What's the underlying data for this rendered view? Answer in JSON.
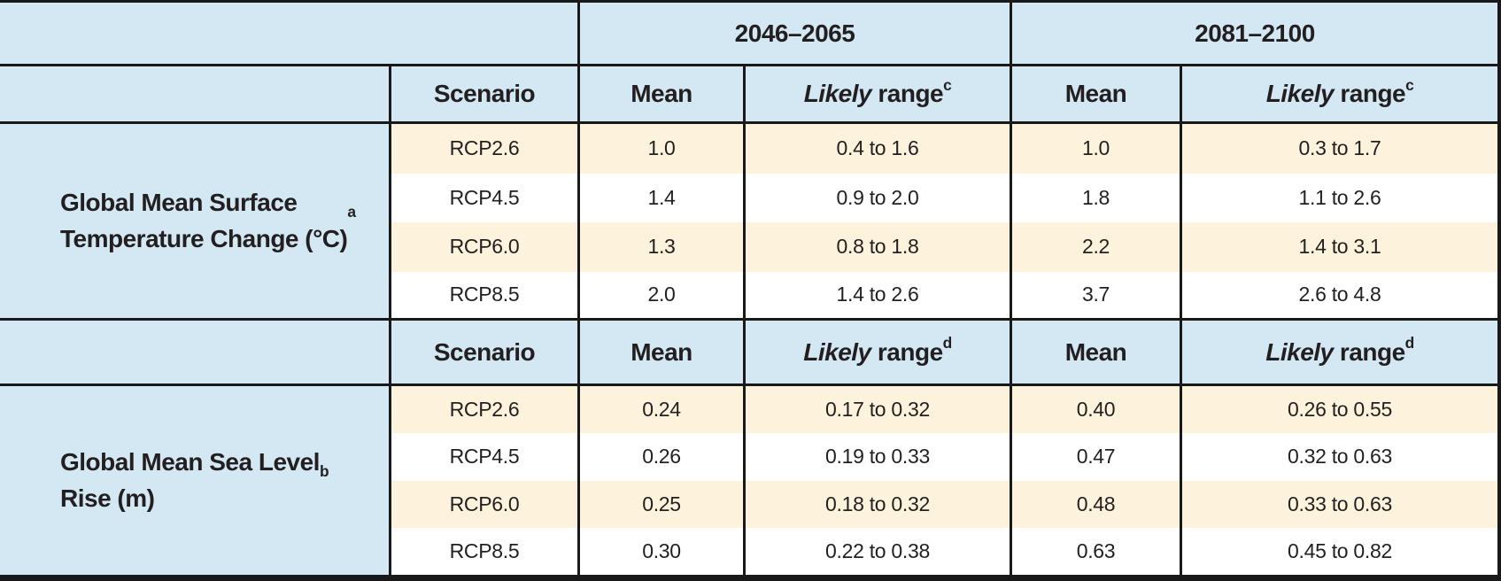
{
  "table": {
    "period_headers": [
      "2046–2065",
      "2081–2100"
    ],
    "column_headers": {
      "scenario": "Scenario",
      "mean": "Mean",
      "likely_word": "Likely",
      "range_word": "range"
    },
    "sections": [
      {
        "label": "Global Mean Surface\nTemperature Change (°C)",
        "label_sup": "a",
        "likely_sup": "c",
        "rows": [
          {
            "scenario": "RCP2.6",
            "mean1": "1.0",
            "range1": "0.4 to 1.6",
            "mean2": "1.0",
            "range2": "0.3 to 1.7"
          },
          {
            "scenario": "RCP4.5",
            "mean1": "1.4",
            "range1": "0.9 to 2.0",
            "mean2": "1.8",
            "range2": "1.1 to 2.6"
          },
          {
            "scenario": "RCP6.0",
            "mean1": "1.3",
            "range1": "0.8 to 1.8",
            "mean2": "2.2",
            "range2": "1.4 to 3.1"
          },
          {
            "scenario": "RCP8.5",
            "mean1": "2.0",
            "range1": "1.4 to 2.6",
            "mean2": "3.7",
            "range2": "2.6 to 4.8"
          }
        ]
      },
      {
        "label": "Global Mean Sea Level\nRise (m)",
        "label_sup": "b",
        "likely_sup": "d",
        "rows": [
          {
            "scenario": "RCP2.6",
            "mean1": "0.24",
            "range1": "0.17 to 0.32",
            "mean2": "0.40",
            "range2": "0.26 to 0.55"
          },
          {
            "scenario": "RCP4.5",
            "mean1": "0.26",
            "range1": "0.19 to 0.33",
            "mean2": "0.47",
            "range2": "0.32 to 0.63"
          },
          {
            "scenario": "RCP6.0",
            "mean1": "0.25",
            "range1": "0.18 to 0.32",
            "mean2": "0.48",
            "range2": "0.33 to 0.63"
          },
          {
            "scenario": "RCP8.5",
            "mean1": "0.30",
            "range1": "0.22 to 0.38",
            "mean2": "0.63",
            "range2": "0.45 to 0.82"
          }
        ]
      }
    ]
  },
  "colors": {
    "header_blue": "#d3e8f3",
    "row_cream": "#fdf3dc",
    "row_white": "#ffffff",
    "border": "#191919",
    "text": "#231f20"
  }
}
